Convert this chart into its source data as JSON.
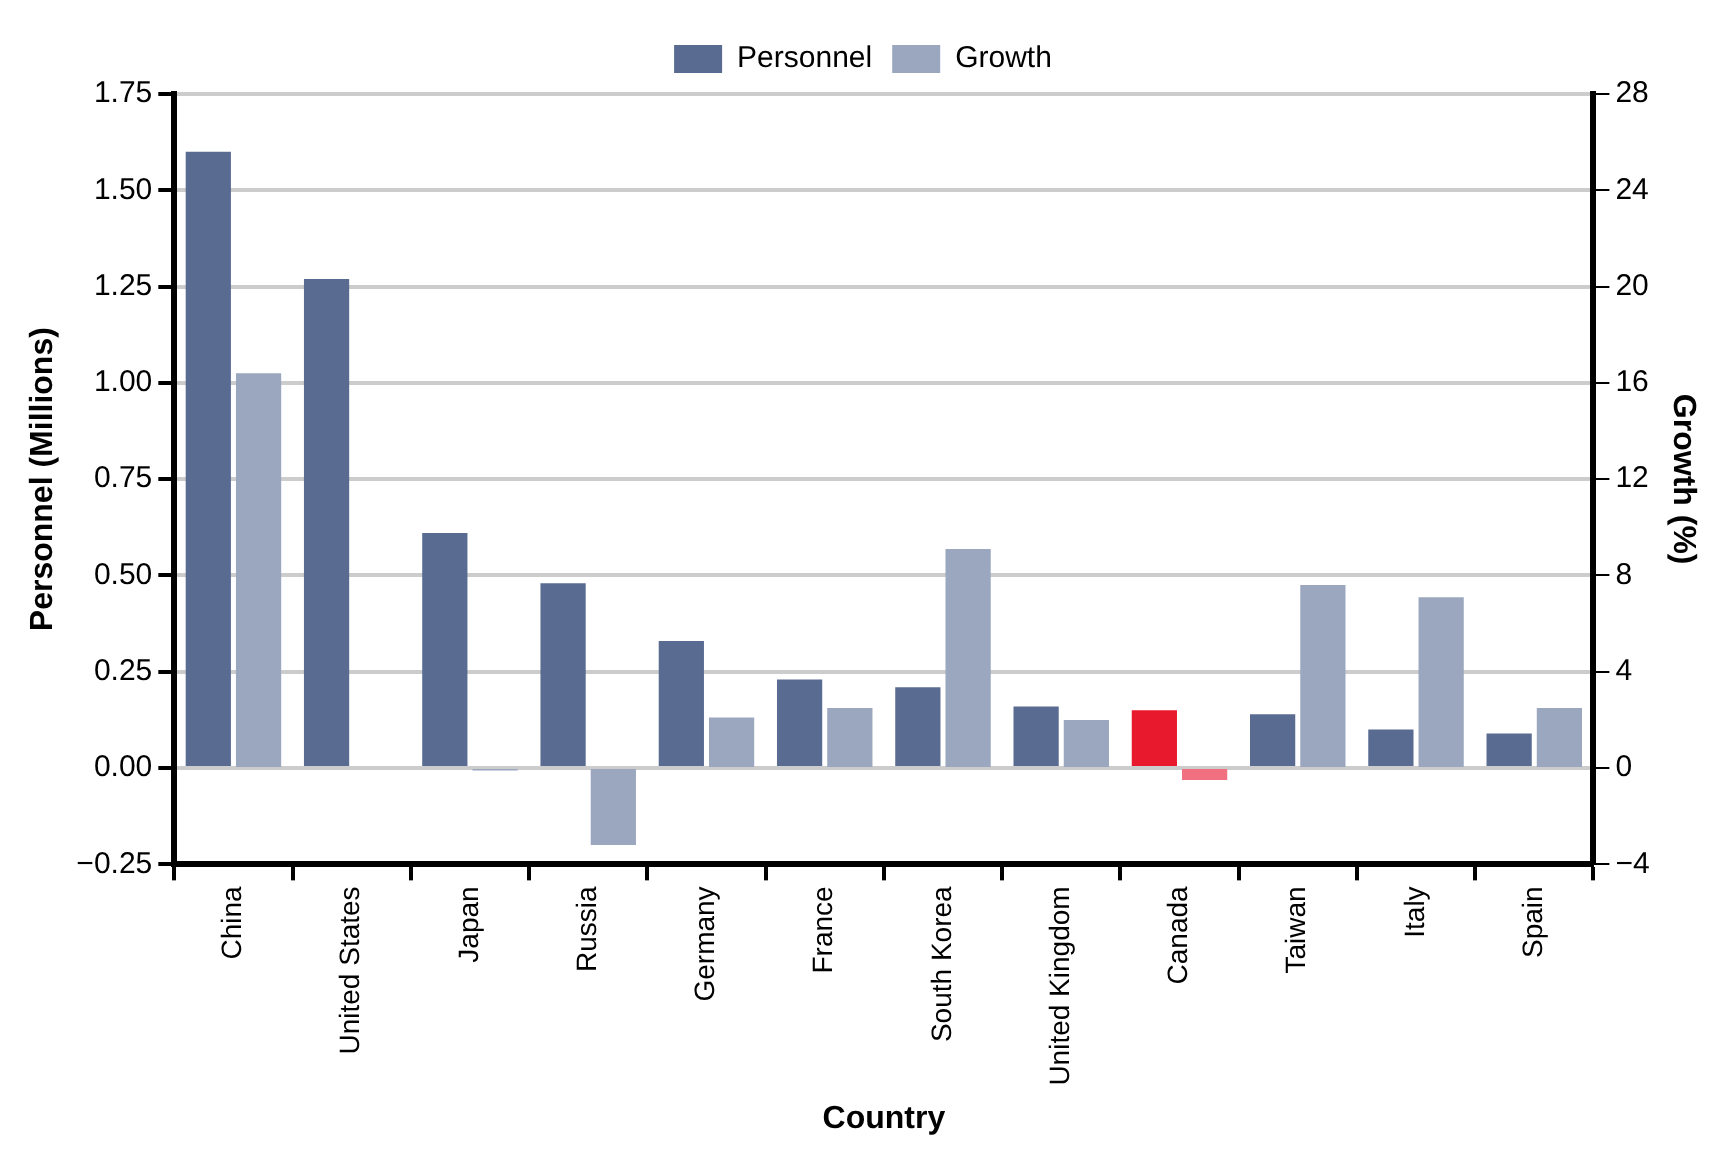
{
  "chart_data": {
    "type": "bar",
    "xlabel": "Country",
    "ylabel": "Personnel (Millions)",
    "y2label": "Growth (%)",
    "categories": [
      "China",
      "United States",
      "Japan",
      "Russia",
      "Germany",
      "France",
      "South Korea",
      "United Kingdom",
      "Canada",
      "Taiwan",
      "Italy",
      "Spain"
    ],
    "series": [
      {
        "name": "Personnel",
        "color": "#596b91",
        "colors": [
          "#596b91",
          "#596b91",
          "#596b91",
          "#596b91",
          "#596b91",
          "#596b91",
          "#596b91",
          "#596b91",
          "#e8192c",
          "#596b91",
          "#596b91",
          "#596b91"
        ],
        "values": [
          1.6,
          1.27,
          0.61,
          0.48,
          0.33,
          0.23,
          0.21,
          0.16,
          0.15,
          0.14,
          0.1,
          0.09
        ]
      },
      {
        "name": "Growth",
        "color": "#9ba7be",
        "axis": "y2",
        "colors": [
          "#9ba7be",
          "#9ba7be",
          "#9ba7be",
          "#9ba7be",
          "#9ba7be",
          "#9ba7be",
          "#9ba7be",
          "#9ba7be",
          "#f07080",
          "#9ba7be",
          "#9ba7be",
          "#9ba7be"
        ],
        "values": [
          16.4,
          0,
          -0.1,
          -3.2,
          2.1,
          2.5,
          9.1,
          2,
          -0.5,
          7.6,
          7.1,
          2.5
        ]
      }
    ],
    "ylim": [
      -0.25,
      1.75
    ],
    "yticks": [
      {
        "value": -0.25,
        "label": "−0.25"
      },
      {
        "value": 0,
        "label": "0.00"
      },
      {
        "value": 0.25,
        "label": "0.25"
      },
      {
        "value": 0.5,
        "label": "0.50"
      },
      {
        "value": 0.75,
        "label": "0.75"
      },
      {
        "value": 1,
        "label": "1.00"
      },
      {
        "value": 1.25,
        "label": "1.25"
      },
      {
        "value": 1.5,
        "label": "1.50"
      },
      {
        "value": 1.75,
        "label": "1.75"
      }
    ],
    "y2lim": [
      -4,
      28
    ],
    "y2ticks": [
      {
        "value": -4,
        "label": "−4"
      },
      0,
      4,
      8,
      12,
      16,
      20,
      24,
      28
    ],
    "grid": "y",
    "legend": "top"
  }
}
